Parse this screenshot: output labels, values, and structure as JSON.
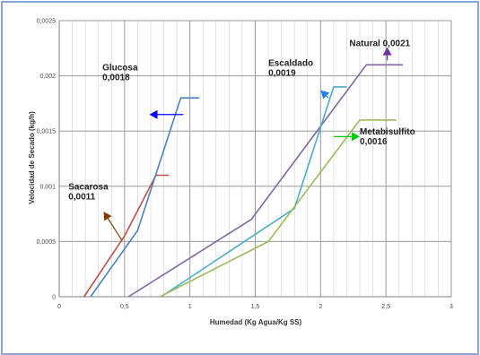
{
  "chart_data": {
    "type": "line",
    "title": "",
    "xlabel": "Humedad (Kg Agua/Kg SS)",
    "ylabel": "Velocidad de Secado (kg/h)",
    "xlim": [
      0,
      3
    ],
    "ylim": [
      0,
      0.0025
    ],
    "x_ticks": [
      {
        "value": 0,
        "label": "0"
      },
      {
        "value": 0.5,
        "label": "0,5"
      },
      {
        "value": 1,
        "label": "1"
      },
      {
        "value": 1.5,
        "label": "1,5"
      },
      {
        "value": 2,
        "label": "2"
      },
      {
        "value": 2.5,
        "label": "2,5"
      },
      {
        "value": 3,
        "label": "3"
      }
    ],
    "y_ticks": [
      {
        "value": 0,
        "label": "0"
      },
      {
        "value": 0.0005,
        "label": "0,0005"
      },
      {
        "value": 0.001,
        "label": "0,001"
      },
      {
        "value": 0.0015,
        "label": "0,0015"
      },
      {
        "value": 0.002,
        "label": "0,002"
      },
      {
        "value": 0.0025,
        "label": "0,0025"
      }
    ],
    "grid": true,
    "legend": "none",
    "series": [
      {
        "color": "#c0504d",
        "points": [
          [
            0.19,
            0
          ],
          [
            0.5,
            0.00055
          ],
          [
            0.74,
            0.0011
          ],
          [
            0.84,
            0.0011
          ]
        ]
      },
      {
        "color": "#4f81bd",
        "points": [
          [
            0.24,
            0
          ],
          [
            0.6,
            0.0006
          ],
          [
            0.93,
            0.0018
          ],
          [
            1.07,
            0.0018
          ]
        ]
      },
      {
        "color": "#8064a2",
        "points": [
          [
            0.53,
            0
          ],
          [
            1.47,
            0.0007
          ],
          [
            2.35,
            0.0021
          ],
          [
            2.63,
            0.0021
          ]
        ]
      },
      {
        "color": "#4bacc6",
        "points": [
          [
            0.78,
            0
          ],
          [
            1.8,
            0.0008
          ],
          [
            2.1,
            0.0019
          ],
          [
            2.2,
            0.0019
          ]
        ]
      },
      {
        "color": "#9bbb59",
        "points": [
          [
            0.77,
            0
          ],
          [
            1.6,
            0.0005
          ],
          [
            2.3,
            0.0016
          ],
          [
            2.58,
            0.0016
          ]
        ]
      }
    ],
    "annotations": [
      {
        "lines": [
          "Glucosa",
          "0,0018"
        ],
        "arrow_color": "#0000ff",
        "anchor": [
          0.33,
          0.00205
        ],
        "arrow_tail": [
          0.95,
          0.00165
        ],
        "arrow_head": [
          0.69,
          0.00165
        ]
      },
      {
        "lines": [
          "Sacarosa",
          "0,0011"
        ],
        "arrow_color": "#7f3f00",
        "anchor": [
          0.07,
          0.00097
        ],
        "arrow_tail": [
          0.48,
          0.00051
        ],
        "arrow_head": [
          0.34,
          0.00077
        ]
      },
      {
        "lines": [
          "Escaldado",
          "0,0019"
        ],
        "arrow_color": "#1f7fff",
        "anchor": [
          1.6,
          0.00209
        ],
        "arrow_tail": [
          2.06,
          0.0018
        ],
        "arrow_head": [
          2.0,
          0.00187
        ]
      },
      {
        "lines": [
          "Natural 0,0021"
        ],
        "arrow_color": "#7030a0",
        "anchor": [
          2.22,
          0.00227
        ],
        "arrow_tail": [
          2.51,
          0.00214
        ],
        "arrow_head": [
          2.51,
          0.00226
        ]
      },
      {
        "lines": [
          "Metabisulfito",
          "0,0016"
        ],
        "arrow_color": "#00cc00",
        "anchor": [
          2.3,
          0.00147
        ],
        "arrow_tail": [
          2.1,
          0.00145
        ],
        "arrow_head": [
          2.3,
          0.00145
        ]
      }
    ]
  }
}
